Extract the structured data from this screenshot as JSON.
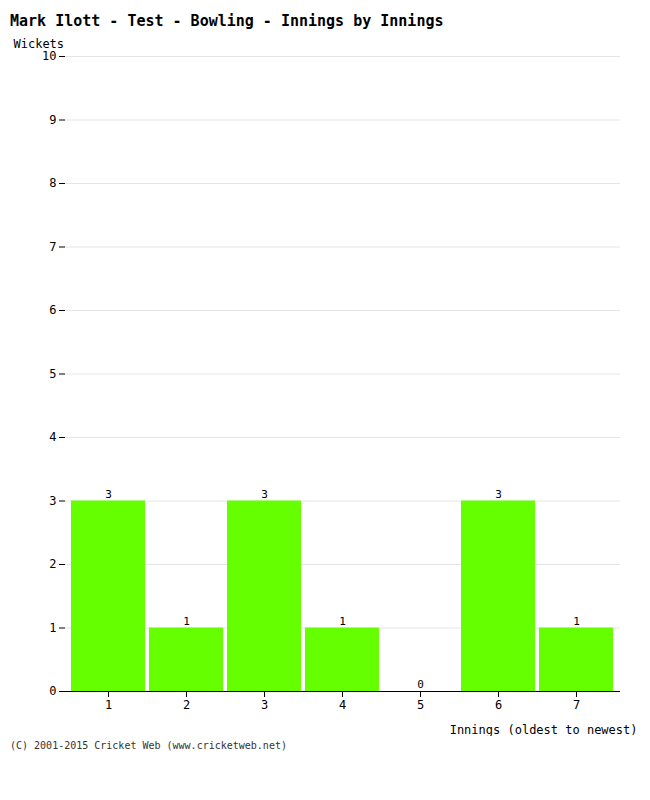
{
  "chart_data": {
    "type": "bar",
    "title": "Mark Ilott - Test - Bowling - Innings by Innings",
    "xlabel": "Innings (oldest to newest)",
    "ylabel": "Wickets",
    "categories": [
      "1",
      "2",
      "3",
      "4",
      "5",
      "6",
      "7"
    ],
    "values": [
      3,
      1,
      3,
      1,
      0,
      3,
      1
    ],
    "color": "#66ff00",
    "ylim": [
      0,
      10
    ],
    "yticks": [
      0,
      1,
      2,
      3,
      4,
      5,
      6,
      7,
      8,
      9,
      10
    ],
    "grid": true,
    "data_labels": true,
    "caption": "(C) 2001-2015 Cricket Web (www.cricketweb.net)"
  }
}
